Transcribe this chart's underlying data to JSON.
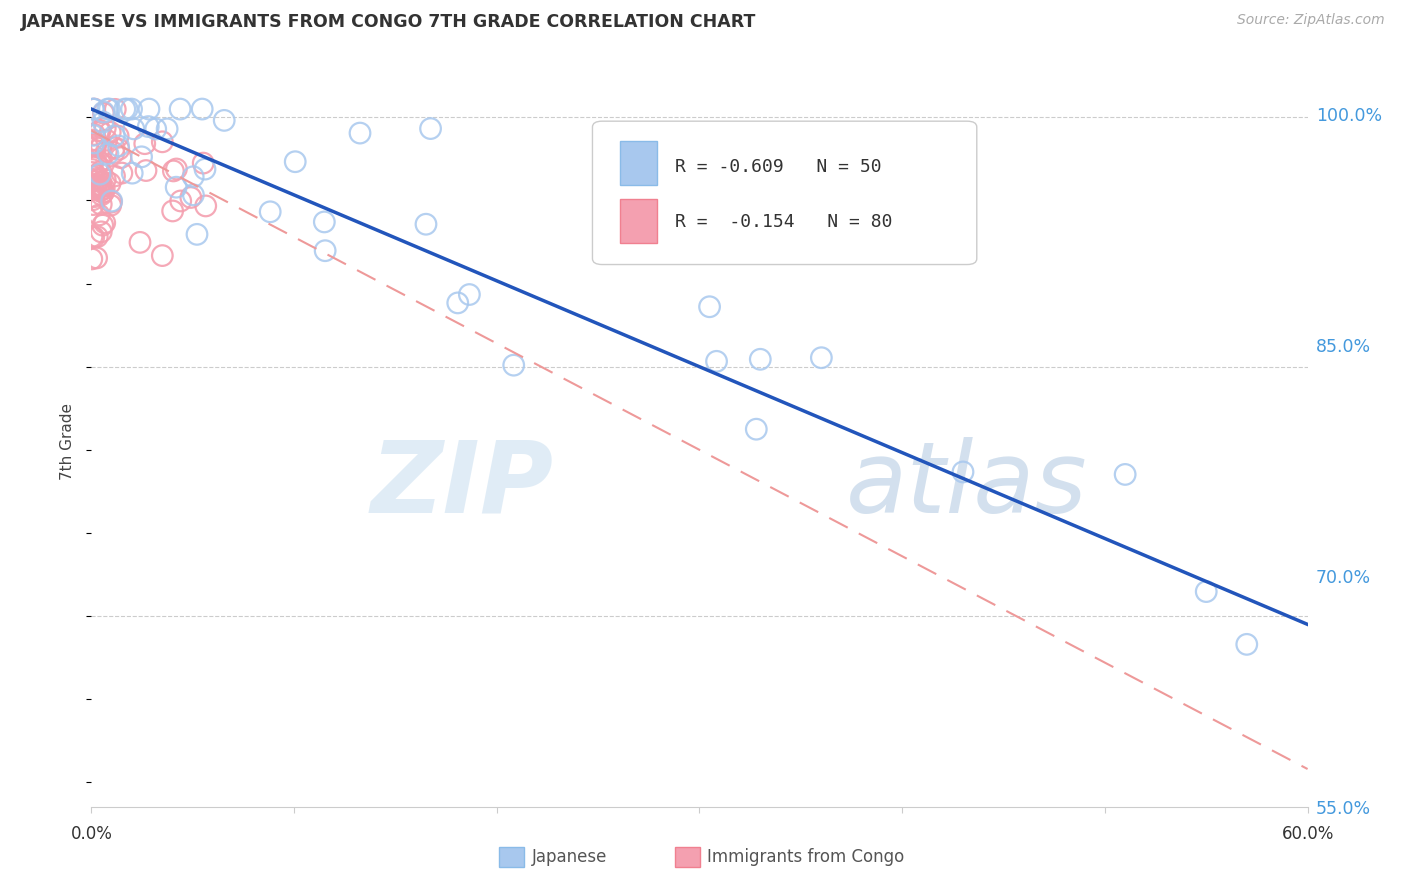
{
  "title": "JAPANESE VS IMMIGRANTS FROM CONGO 7TH GRADE CORRELATION CHART",
  "source": "Source: ZipAtlas.com",
  "ylabel": "7th Grade",
  "watermark_zip": "ZIP",
  "watermark_atlas": "atlas",
  "legend_blue_label": "Japanese",
  "legend_pink_label": "Immigrants from Congo",
  "legend_blue_R": "-0.609",
  "legend_blue_N": "50",
  "legend_pink_R": "-0.154",
  "legend_pink_N": "80",
  "blue_scatter_color": "#A8C8EE",
  "pink_scatter_color": "#F4A0B0",
  "blue_line_color": "#2255BB",
  "pink_line_color": "#EE9999",
  "xmin": 0.0,
  "xmax": 0.6,
  "ymin": 0.585,
  "ymax": 1.025,
  "yticks": [
    1.0,
    0.85,
    0.7,
    0.55
  ],
  "ytick_labels": [
    "100.0%",
    "85.0%",
    "70.0%",
    "55.0%"
  ],
  "blue_line_x0": 0.0,
  "blue_line_y0": 1.005,
  "blue_line_x1": 0.6,
  "blue_line_y1": 0.695,
  "pink_line_x0": 0.0,
  "pink_line_y0": 0.992,
  "pink_line_x1": 0.6,
  "pink_line_y1": 0.608
}
